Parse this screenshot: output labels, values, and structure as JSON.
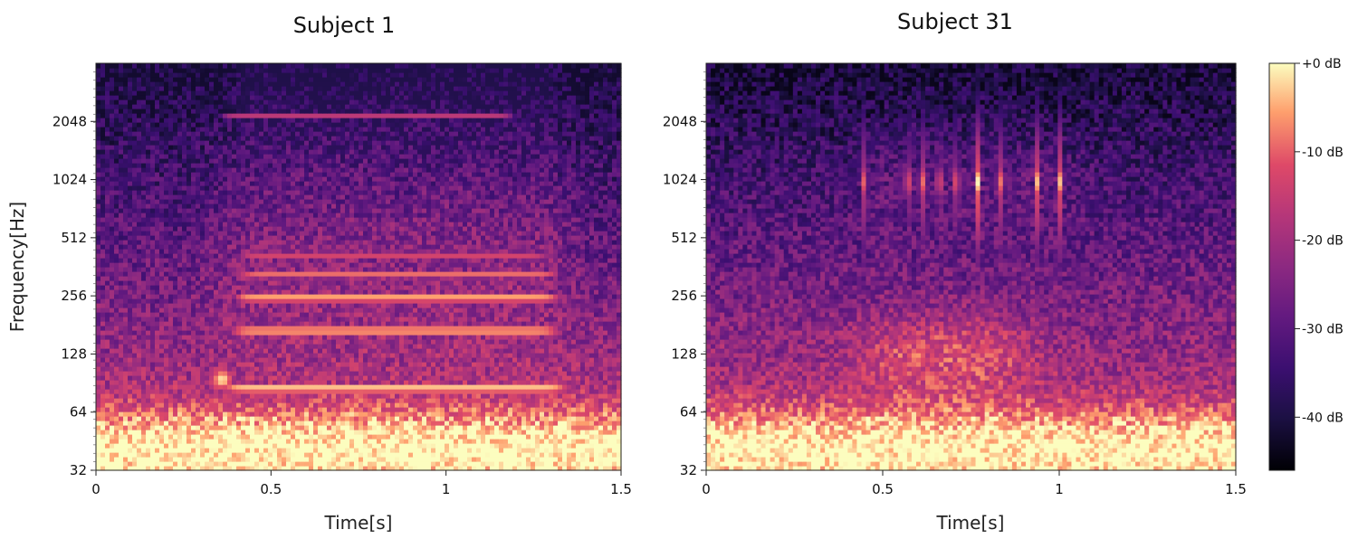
{
  "chart_data": [
    {
      "type": "heatmap",
      "title": "Subject 1",
      "xlabel": "Time[s]",
      "ylabel": "Frequency[Hz]",
      "xlim": [
        0,
        1.5
      ],
      "ylim": [
        32,
        4096
      ],
      "y_scale": "log2",
      "xticks": [
        "0",
        "0.5",
        "1",
        "1.5"
      ],
      "yticks": [
        "32",
        "64",
        "128",
        "256",
        "512",
        "1024",
        "2048"
      ],
      "xtick_values": [
        0,
        0.5,
        1,
        1.5
      ],
      "ytick_values": [
        32,
        64,
        128,
        256,
        512,
        1024,
        2048
      ],
      "harmonic_bands": [
        {
          "freq_hz": 85,
          "t_start": 0.36,
          "t_end": 1.35,
          "level_db": 0
        },
        {
          "freq_hz": 170,
          "t_start": 0.38,
          "t_end": 1.33,
          "level_db": -3
        },
        {
          "freq_hz": 250,
          "t_start": 0.39,
          "t_end": 1.33,
          "level_db": -5
        },
        {
          "freq_hz": 330,
          "t_start": 0.4,
          "t_end": 1.33,
          "level_db": -12
        },
        {
          "freq_hz": 420,
          "t_start": 0.4,
          "t_end": 1.3,
          "level_db": -16
        },
        {
          "freq_hz": 2200,
          "t_start": 0.35,
          "t_end": 1.2,
          "level_db": -18
        }
      ],
      "low_freq_energy_below_hz": 70
    },
    {
      "type": "heatmap",
      "title": "Subject 31",
      "xlabel": "Time[s]",
      "ylabel": "",
      "xlim": [
        0,
        1.5
      ],
      "ylim": [
        32,
        4096
      ],
      "y_scale": "log2",
      "xticks": [
        "0",
        "0.5",
        "1",
        "1.5"
      ],
      "yticks": [
        "32",
        "64",
        "128",
        "256",
        "512",
        "1024",
        "2048"
      ],
      "xtick_values": [
        0,
        0.5,
        1,
        1.5
      ],
      "ytick_values": [
        32,
        64,
        128,
        256,
        512,
        1024,
        2048
      ],
      "transients_s": [
        0.45,
        0.57,
        0.61,
        0.66,
        0.71,
        0.77,
        0.83,
        0.94,
        1.0
      ],
      "transient_band_hz": [
        700,
        1400
      ],
      "diffuse_energy": {
        "t_start": 0.45,
        "t_end": 0.9,
        "f_low": 90,
        "f_high": 200
      },
      "low_freq_energy_below_hz": 70
    }
  ],
  "colorbar": {
    "colormap": "magma",
    "labels": [
      "+0 dB",
      "-10 dB",
      "-20 dB",
      "-30 dB",
      "-40 dB"
    ],
    "values": [
      0,
      -10,
      -20,
      -30,
      -40
    ],
    "range": [
      -46,
      0
    ]
  }
}
